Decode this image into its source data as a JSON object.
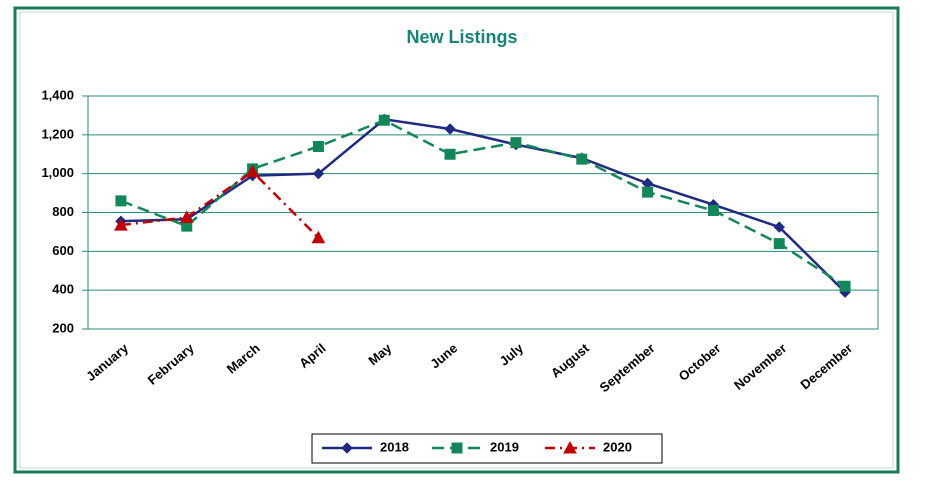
{
  "chart_data": {
    "type": "line",
    "title": "New Listings",
    "categories": [
      "January",
      "February",
      "March",
      "April",
      "May",
      "June",
      "July",
      "August",
      "September",
      "October",
      "November",
      "December"
    ],
    "series": [
      {
        "name": "2018",
        "color": "#1f2a80",
        "dash": "solid",
        "marker": "diamond",
        "values": [
          755,
          765,
          990,
          1000,
          1280,
          1230,
          1150,
          1080,
          950,
          840,
          725,
          390
        ]
      },
      {
        "name": "2019",
        "color": "#13875a",
        "dash": "dashed",
        "marker": "square",
        "values": [
          860,
          730,
          1025,
          1140,
          1275,
          1100,
          1160,
          1075,
          905,
          810,
          640,
          420
        ]
      },
      {
        "name": "2020",
        "color": "#c00000",
        "dash": "dashdot",
        "marker": "triangle",
        "values": [
          735,
          775,
          1010,
          670,
          null,
          null,
          null,
          null,
          null,
          null,
          null,
          null
        ]
      }
    ],
    "ylim": [
      200,
      1400
    ],
    "yticks": [
      200,
      400,
      600,
      800,
      {
        "value": 1000,
        "label": "1,000"
      },
      {
        "value": 1200,
        "label": "1,200"
      },
      {
        "value": 1400,
        "label": "1,400"
      }
    ],
    "grid": true,
    "legend": "bottom"
  }
}
